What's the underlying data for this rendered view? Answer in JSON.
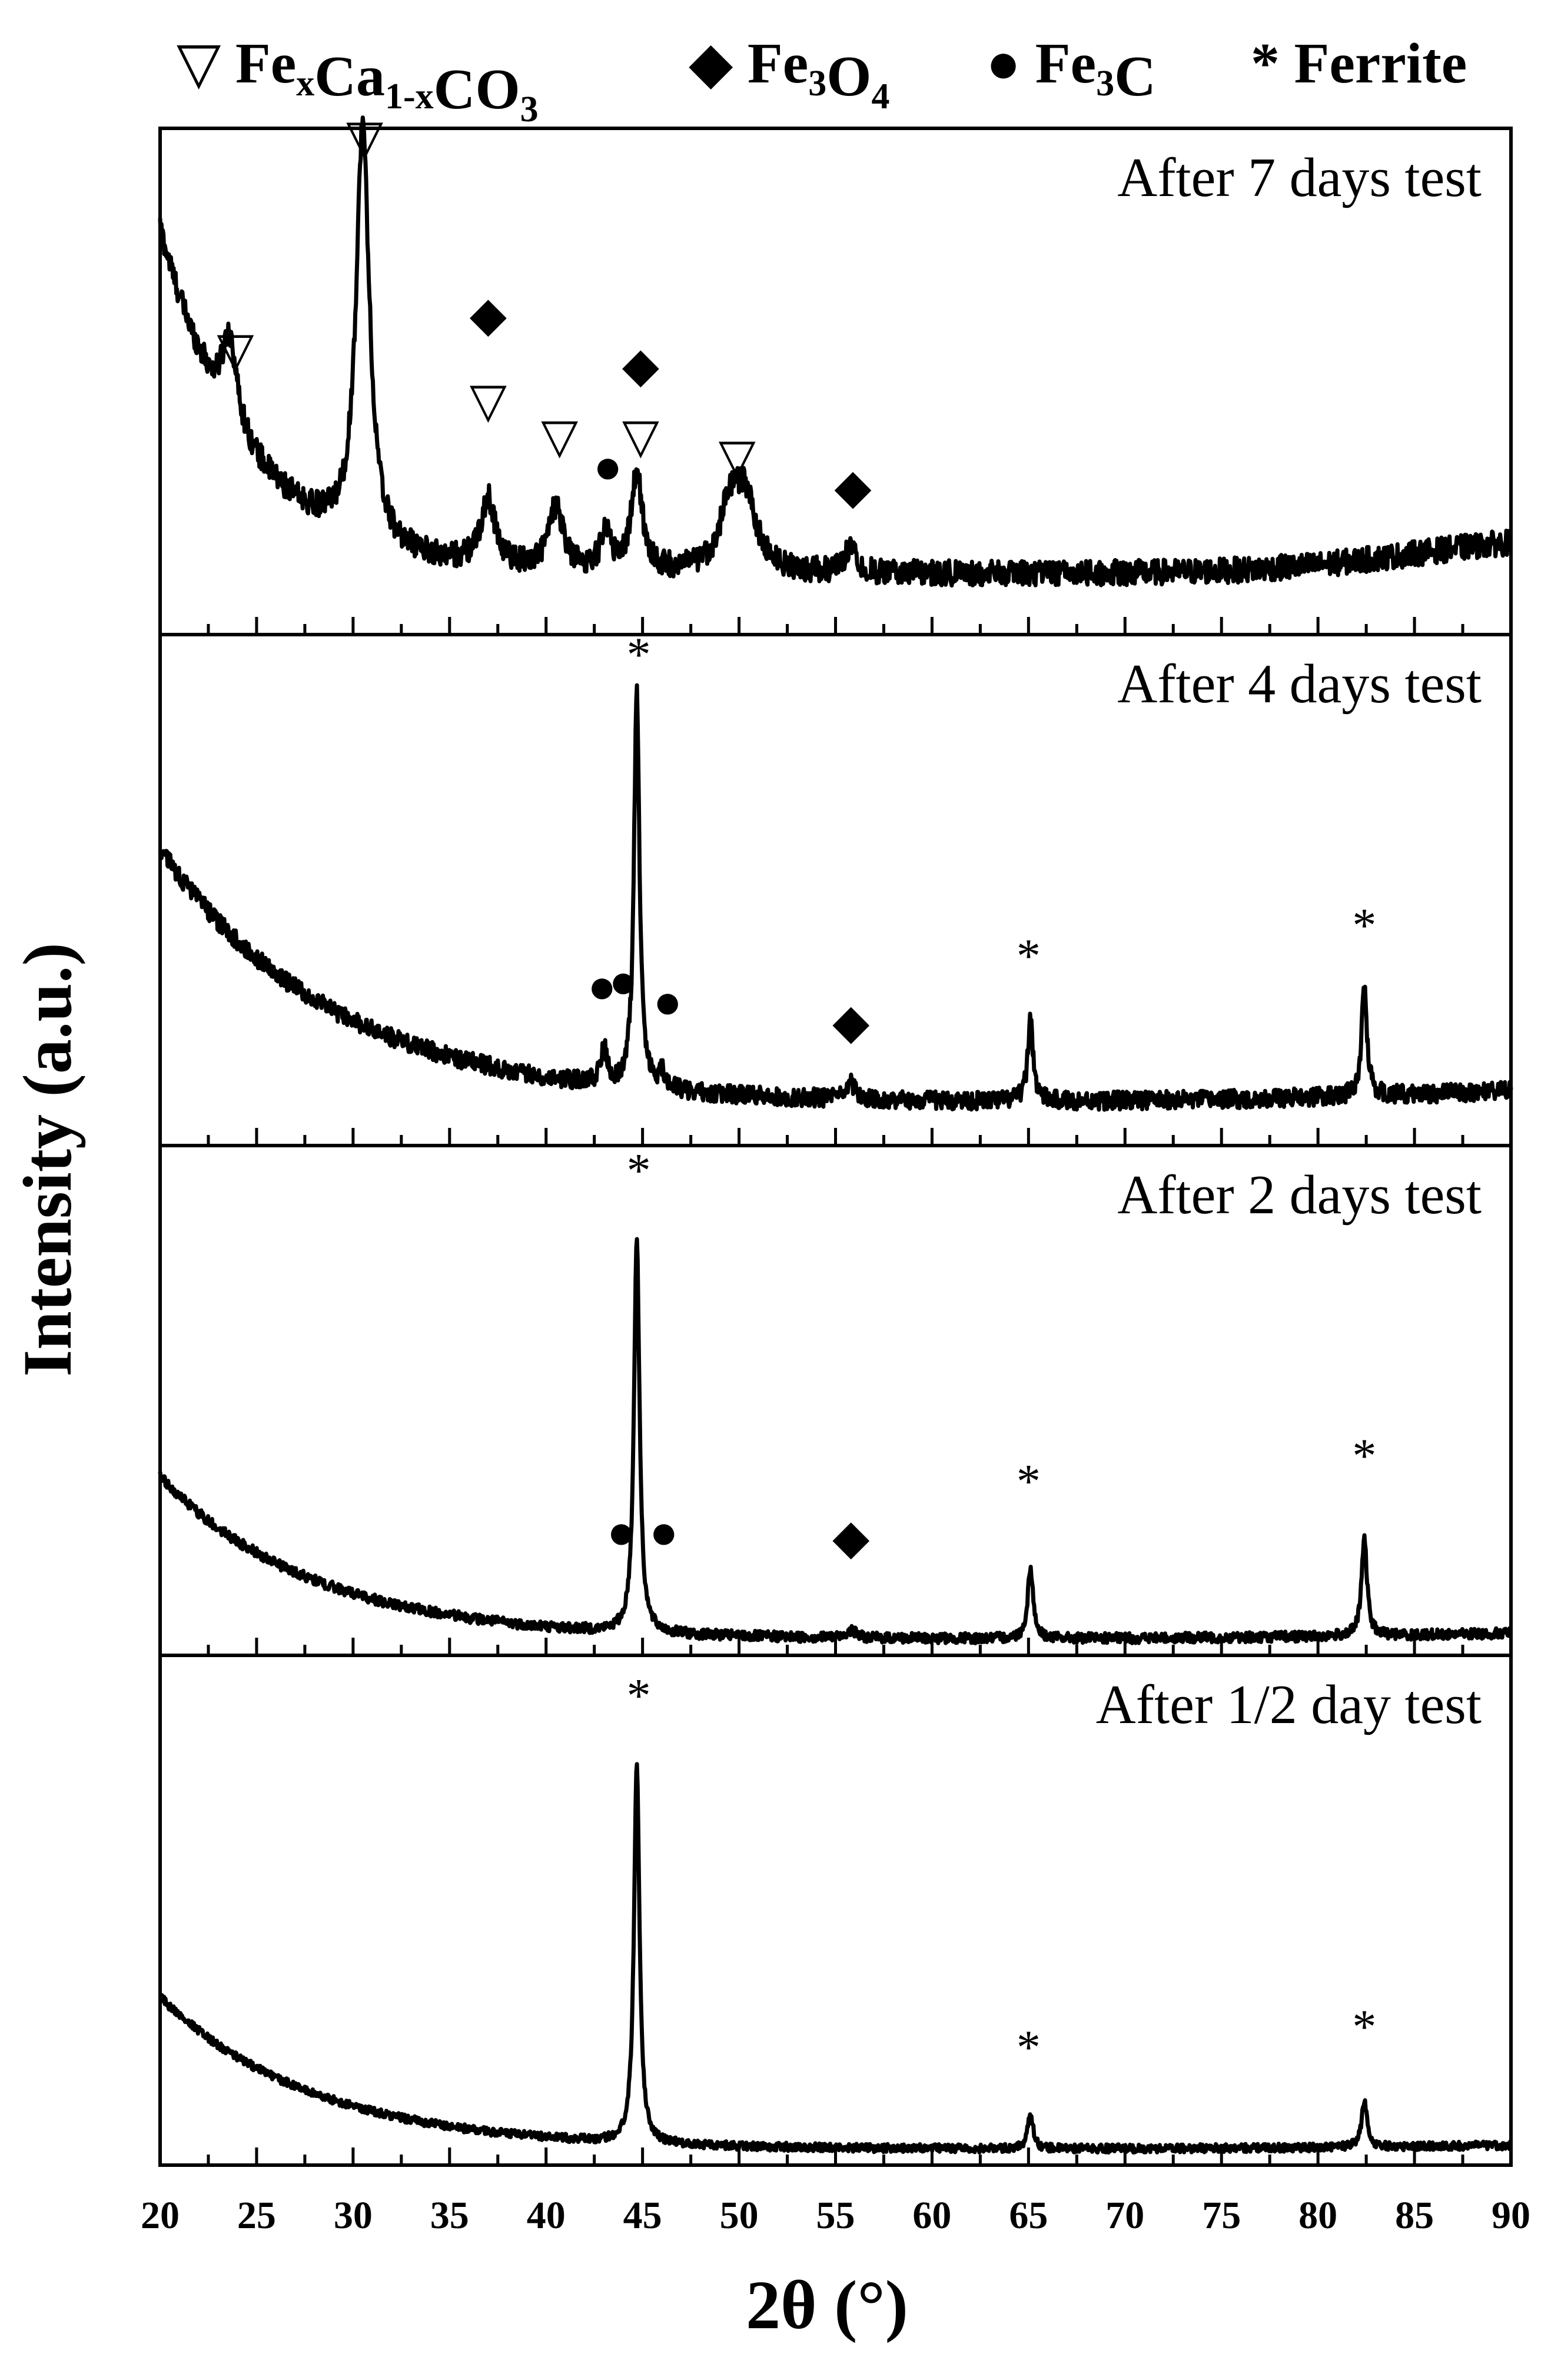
{
  "chart_data": {
    "type": "line",
    "title": "",
    "xlabel": "2θ (°)",
    "ylabel": "Intensity (a.u.)",
    "xlim": [
      20,
      90
    ],
    "x_ticks": [
      20,
      25,
      30,
      35,
      40,
      45,
      50,
      55,
      60,
      65,
      70,
      75,
      80,
      85,
      90
    ],
    "grid": false,
    "legend": {
      "position": "top",
      "entries": [
        {
          "marker": "triangle-down-open",
          "symbol": "▽",
          "parts": [
            {
              "text": "Fe",
              "sub": false
            },
            {
              "text": "x",
              "sub": true
            },
            {
              "text": "Ca",
              "sub": false
            },
            {
              "text": "1-x",
              "sub": true
            },
            {
              "text": "CO",
              "sub": false
            },
            {
              "text": "3",
              "sub": true
            }
          ]
        },
        {
          "marker": "diamond-filled",
          "symbol": "◆",
          "parts": [
            {
              "text": "Fe",
              "sub": false
            },
            {
              "text": "3",
              "sub": true
            },
            {
              "text": "O",
              "sub": false
            },
            {
              "text": "4",
              "sub": true
            }
          ]
        },
        {
          "marker": "circle-filled",
          "symbol": "●",
          "parts": [
            {
              "text": "Fe",
              "sub": false
            },
            {
              "text": "3",
              "sub": true
            },
            {
              "text": "C",
              "sub": false
            }
          ]
        },
        {
          "marker": "asterisk",
          "symbol": "*",
          "parts": [
            {
              "text": "Ferrite",
              "sub": false
            }
          ]
        }
      ]
    },
    "markers": {
      "siderite": "▽",
      "magnetite": "◆",
      "cementite": "●",
      "ferrite": "*"
    },
    "series": [
      {
        "name": "After 7 days test",
        "baseline": {
          "start": 0.8,
          "amp": 0.68,
          "decay": 4.5,
          "rise_center": 85,
          "rise_amp": 0.08,
          "rise_width": 4
        },
        "noise": 0.025,
        "peaks": [
          {
            "x": 23.6,
            "h": 0.17,
            "w": 0.45
          },
          {
            "x": 30.5,
            "h": 0.82,
            "w": 0.42
          },
          {
            "x": 37.0,
            "h": 0.13,
            "w": 0.45
          },
          {
            "x": 40.5,
            "h": 0.12,
            "w": 0.45
          },
          {
            "x": 43.1,
            "h": 0.08,
            "w": 0.3
          },
          {
            "x": 44.7,
            "h": 0.19,
            "w": 0.35
          },
          {
            "x": 49.5,
            "h": 0.11,
            "w": 0.6
          },
          {
            "x": 50.3,
            "h": 0.14,
            "w": 0.7
          },
          {
            "x": 55.8,
            "h": 0.06,
            "w": 0.3
          }
        ],
        "annotations": [
          {
            "x": 23.9,
            "y": 0.53,
            "symbol": "▽"
          },
          {
            "x": 30.6,
            "y": 0.95,
            "symbol": "▽"
          },
          {
            "x": 37.0,
            "y": 0.43,
            "symbol": "▽"
          },
          {
            "x": 37.0,
            "y": 0.6,
            "symbol": "◆"
          },
          {
            "x": 40.7,
            "y": 0.36,
            "symbol": "▽"
          },
          {
            "x": 43.2,
            "y": 0.3,
            "symbol": "●"
          },
          {
            "x": 44.9,
            "y": 0.36,
            "symbol": "▽"
          },
          {
            "x": 44.9,
            "y": 0.5,
            "symbol": "◆"
          },
          {
            "x": 49.9,
            "y": 0.32,
            "symbol": "▽"
          },
          {
            "x": 55.9,
            "y": 0.26,
            "symbol": "◆"
          }
        ]
      },
      {
        "name": "After 4 days test",
        "baseline": {
          "start": 0.58,
          "amp": 0.5,
          "decay": 9.0,
          "rise_center": 92,
          "rise_amp": 0.06,
          "rise_width": 10
        },
        "noise": 0.018,
        "peaks": [
          {
            "x": 43.0,
            "h": 0.07,
            "w": 0.2
          },
          {
            "x": 44.7,
            "h": 0.78,
            "w": 0.17
          },
          {
            "x": 46.0,
            "h": 0.03,
            "w": 0.2
          },
          {
            "x": 55.8,
            "h": 0.03,
            "w": 0.3
          },
          {
            "x": 65.1,
            "h": 0.16,
            "w": 0.17
          },
          {
            "x": 82.4,
            "h": 0.21,
            "w": 0.17
          }
        ],
        "annotations": [
          {
            "x": 44.8,
            "y": 0.93,
            "symbol": "*"
          },
          {
            "x": 42.9,
            "y": 0.28,
            "symbol": "●"
          },
          {
            "x": 44.0,
            "y": 0.29,
            "symbol": "●"
          },
          {
            "x": 46.3,
            "y": 0.25,
            "symbol": "●"
          },
          {
            "x": 55.8,
            "y": 0.21,
            "symbol": "◆"
          },
          {
            "x": 65.0,
            "y": 0.34,
            "symbol": "*"
          },
          {
            "x": 82.4,
            "y": 0.4,
            "symbol": "*"
          }
        ]
      },
      {
        "name": "After 2 days test",
        "baseline": {
          "start": 0.35,
          "amp": 0.32,
          "decay": 8.0,
          "rise_center": 92,
          "rise_amp": 0.03,
          "rise_width": 10
        },
        "noise": 0.01,
        "peaks": [
          {
            "x": 44.7,
            "h": 0.78,
            "w": 0.17
          },
          {
            "x": 55.8,
            "h": 0.015,
            "w": 0.3
          },
          {
            "x": 65.1,
            "h": 0.14,
            "w": 0.17
          },
          {
            "x": 82.4,
            "h": 0.19,
            "w": 0.17
          }
        ],
        "annotations": [
          {
            "x": 44.8,
            "y": 0.92,
            "symbol": "*"
          },
          {
            "x": 43.9,
            "y": 0.21,
            "symbol": "●"
          },
          {
            "x": 46.1,
            "y": 0.21,
            "symbol": "●"
          },
          {
            "x": 55.8,
            "y": 0.2,
            "symbol": "◆"
          },
          {
            "x": 65.0,
            "y": 0.31,
            "symbol": "*"
          },
          {
            "x": 82.4,
            "y": 0.36,
            "symbol": "*"
          }
        ]
      },
      {
        "name": "After 1/2 day test",
        "baseline": {
          "start": 0.33,
          "amp": 0.3,
          "decay": 8.0,
          "rise_center": 92,
          "rise_amp": 0.02,
          "rise_width": 10
        },
        "noise": 0.008,
        "peaks": [
          {
            "x": 44.7,
            "h": 0.75,
            "w": 0.17
          },
          {
            "x": 65.1,
            "h": 0.07,
            "w": 0.17
          },
          {
            "x": 82.4,
            "h": 0.09,
            "w": 0.17
          }
        ],
        "annotations": [
          {
            "x": 44.8,
            "y": 0.89,
            "symbol": "*"
          },
          {
            "x": 65.0,
            "y": 0.2,
            "symbol": "*"
          },
          {
            "x": 82.4,
            "y": 0.24,
            "symbol": "*"
          }
        ]
      }
    ]
  }
}
